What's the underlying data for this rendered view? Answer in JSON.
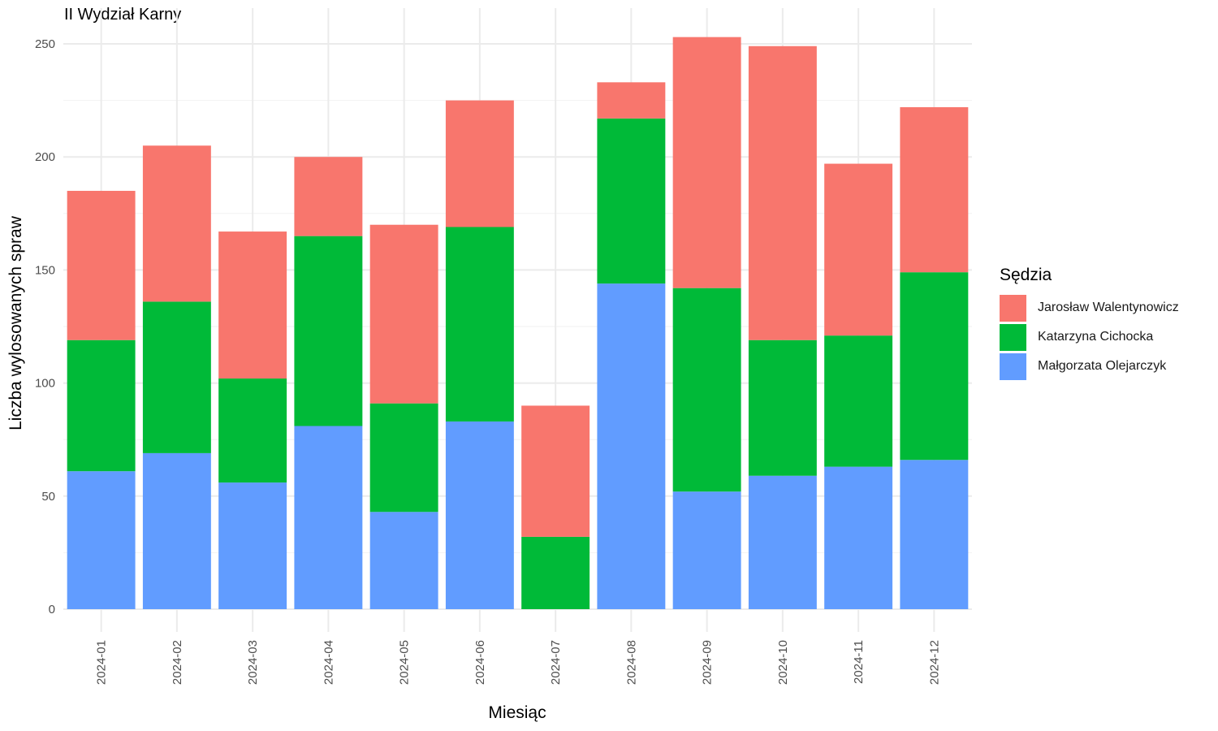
{
  "chart_data": {
    "type": "bar",
    "stacked": true,
    "title": "II Wydział Karny",
    "xlabel": "Miesiąc",
    "ylabel": "Liczba wylosowanych spraw",
    "ylim": [
      0,
      262
    ],
    "yticks": [
      0,
      50,
      100,
      150,
      200,
      250
    ],
    "grid": true,
    "legend_position": "right",
    "legend_title": "Sędzia",
    "categories": [
      "2024-01",
      "2024-02",
      "2024-03",
      "2024-04",
      "2024-05",
      "2024-06",
      "2024-07",
      "2024-08",
      "2024-09",
      "2024-10",
      "2024-11",
      "2024-12"
    ],
    "series": [
      {
        "name": "Małgorzata Olejarczyk",
        "color": "#619CFF",
        "values": [
          61,
          69,
          56,
          81,
          43,
          83,
          0,
          144,
          52,
          59,
          63,
          66
        ]
      },
      {
        "name": "Katarzyna Cichocka",
        "color": "#00BA38",
        "values": [
          58,
          67,
          46,
          84,
          48,
          86,
          32,
          73,
          90,
          60,
          58,
          83
        ]
      },
      {
        "name": "Jarosław Walentynowicz",
        "color": "#F8766D",
        "values": [
          66,
          69,
          65,
          35,
          79,
          56,
          58,
          16,
          111,
          130,
          76,
          73
        ]
      }
    ],
    "legend_order": [
      "Jarosław Walentynowicz",
      "Katarzyna Cichocka",
      "Małgorzata Olejarczyk"
    ]
  }
}
